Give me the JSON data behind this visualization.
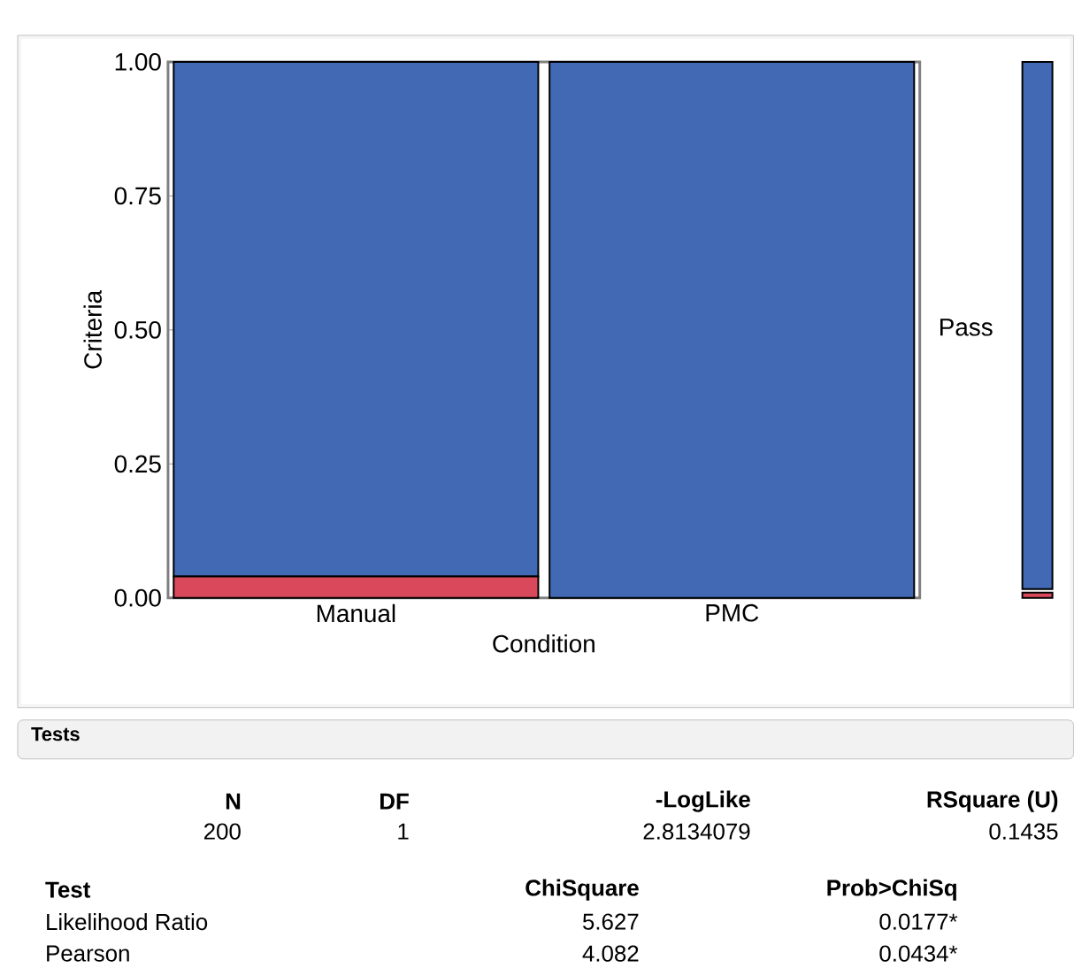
{
  "chart_data": {
    "type": "bar",
    "stacked": true,
    "xlabel": "Condition",
    "ylabel": "Criteria",
    "categories": [
      "Manual",
      "PMC"
    ],
    "series": [
      {
        "color": "#d9485b",
        "values": [
          0.04,
          0
        ]
      },
      {
        "name": "Pass",
        "color": "#4169b4",
        "values": [
          0.96,
          1.0
        ]
      }
    ],
    "ylim": [
      0,
      1
    ],
    "yticks": [
      {
        "value": 0,
        "label": "0.00"
      },
      {
        "value": 0.25,
        "label": "0.25"
      },
      {
        "value": 0.5,
        "label": "0.50"
      },
      {
        "value": 0.75,
        "label": "0.75"
      },
      {
        "value": 1,
        "label": "1.00"
      }
    ],
    "annotations": [
      "Tests",
      "N",
      "DF",
      "-LogLike",
      "RSquare (U)",
      "200",
      "1",
      "2.8134079",
      "0.1435",
      "Test",
      "ChiSquare",
      "Prob>ChiSq",
      "Likelihood Ratio",
      "5.627",
      "0.0177*",
      "Pearson",
      "4.082",
      "0.0434*"
    ]
  }
}
